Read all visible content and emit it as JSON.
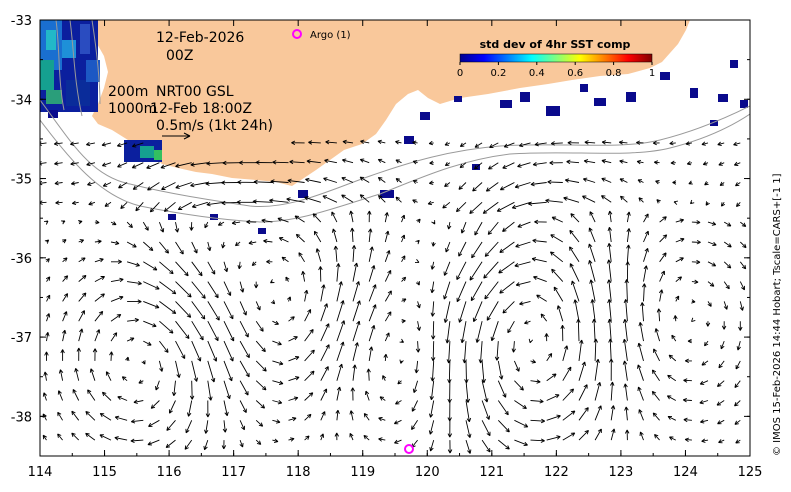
{
  "map": {
    "date_line1": "12-Feb-2026",
    "date_line2": "00Z",
    "depth_200": "200m",
    "product": "NRT00 GSL",
    "depth_1000": "1000m",
    "velocity_time": "12-Feb 18:00Z",
    "scale_label": "0.5m/s (1kt 24h)",
    "argo_label": "Argo (1)",
    "side_credit": "© IMOS 15-Feb-2026 14:44 Hobart; Tscale=CARS+[-1 1]"
  },
  "colorbar": {
    "title": "std dev of 4hr SST comp",
    "ticks": [
      "0",
      "0.2",
      "0.4",
      "0.6",
      "0.8",
      "1"
    ]
  },
  "axes": {
    "x_ticks": [
      "114",
      "115",
      "116",
      "117",
      "118",
      "119",
      "120",
      "121",
      "122",
      "123",
      "124",
      "125"
    ],
    "y_ticks": [
      "-33",
      "-34",
      "-35",
      "-36",
      "-37",
      "-38"
    ],
    "xlim": [
      114,
      125
    ],
    "ylim": [
      -38.5,
      -33
    ]
  },
  "colors": {
    "land": "#f9c89b",
    "sst_patch": "#0a0a8c",
    "argo": "#ff00ff",
    "arrow": "#000000"
  }
}
